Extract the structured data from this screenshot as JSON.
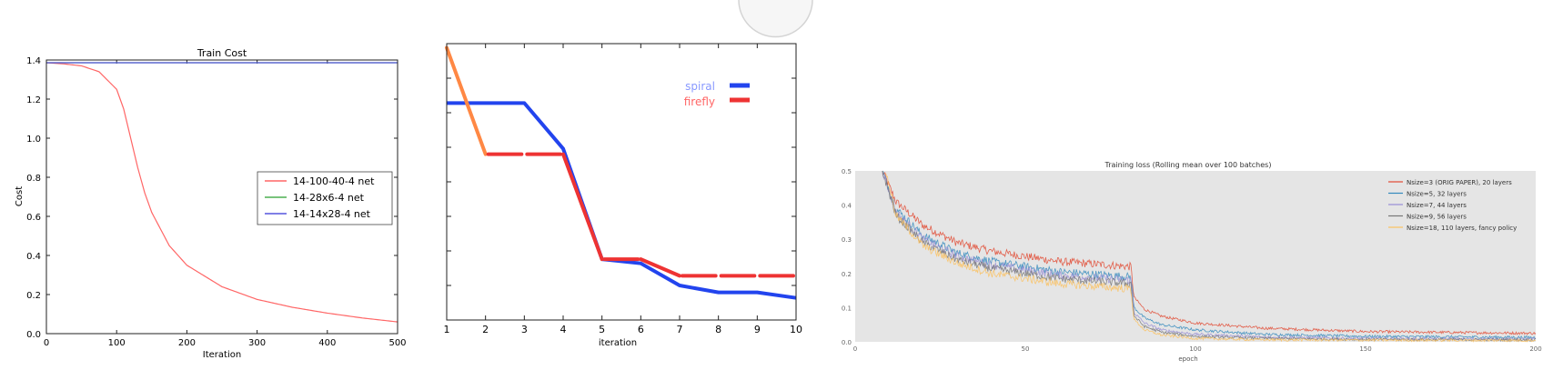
{
  "chart_data": [
    {
      "type": "line",
      "title": "Train Cost",
      "xlabel": "Iteration",
      "ylabel": "Cost",
      "xlim": [
        0,
        500
      ],
      "ylim": [
        0,
        1.4
      ],
      "x_ticks": [
        0,
        100,
        200,
        300,
        400,
        500
      ],
      "y_ticks": [
        0.0,
        0.2,
        0.4,
        0.6,
        0.8,
        1.0,
        1.2,
        1.4
      ],
      "x_tick_labels": [
        "0",
        "100",
        "200",
        "300",
        "400",
        "500"
      ],
      "y_tick_labels": [
        "0.0",
        "0.2",
        "0.4",
        "0.6",
        "0.8",
        "1.0",
        "1.2",
        "1.4"
      ],
      "legend_position": "center-right",
      "grid": false,
      "series": [
        {
          "name": "14-100-40-4 net",
          "color": "#ff6666",
          "x": [
            0,
            25,
            50,
            75,
            100,
            110,
            120,
            130,
            140,
            150,
            175,
            200,
            250,
            300,
            350,
            400,
            450,
            500
          ],
          "y": [
            1.386,
            1.38,
            1.37,
            1.34,
            1.25,
            1.15,
            1.0,
            0.85,
            0.72,
            0.62,
            0.45,
            0.35,
            0.24,
            0.175,
            0.135,
            0.105,
            0.08,
            0.06
          ]
        },
        {
          "name": "14-28x6-4 net",
          "color": "#4caf50",
          "x": [
            0,
            500
          ],
          "y": [
            1.386,
            1.386
          ]
        },
        {
          "name": "14-14x28-4 net",
          "color": "#5555dd",
          "x": [
            0,
            500
          ],
          "y": [
            1.386,
            1.386
          ]
        }
      ]
    },
    {
      "type": "line",
      "title": "",
      "xlabel": "iteration",
      "ylabel": "",
      "xlim": [
        1,
        10
      ],
      "ylim": [
        0,
        1
      ],
      "x_ticks": [
        1,
        2,
        3,
        4,
        5,
        6,
        7,
        8,
        9,
        10
      ],
      "x_tick_labels": [
        "1",
        "2",
        "3",
        "4",
        "5",
        "6",
        "7",
        "8",
        "9",
        "10"
      ],
      "legend_position": "top-right",
      "grid": false,
      "series": [
        {
          "name": "spiral",
          "color": "#2244ee",
          "x": [
            1,
            2,
            3,
            4,
            5,
            6,
            7,
            8,
            9,
            10
          ],
          "y": [
            0.785,
            0.785,
            0.785,
            0.62,
            0.22,
            0.205,
            0.125,
            0.1,
            0.1,
            0.08
          ]
        },
        {
          "name": "firefly",
          "color": "#ee3333",
          "x": [
            1,
            2,
            3,
            4,
            5,
            6,
            7,
            8,
            9,
            10
          ],
          "y": [
            0.985,
            0.6,
            0.6,
            0.6,
            0.22,
            0.22,
            0.16,
            0.16,
            0.16,
            0.16
          ]
        }
      ]
    },
    {
      "type": "line",
      "title": "Training loss (Rolling mean over 100 batches)",
      "xlabel": "epoch",
      "ylabel": "",
      "xlim": [
        0,
        200
      ],
      "ylim": [
        0,
        0.5
      ],
      "x_ticks": [
        0,
        50,
        100,
        150,
        200
      ],
      "y_ticks": [
        0.0,
        0.1,
        0.2,
        0.3,
        0.4,
        0.5
      ],
      "x_tick_labels": [
        "0",
        "50",
        "100",
        "150",
        "200"
      ],
      "y_tick_labels": [
        "0.0",
        "0.1",
        "0.2",
        "0.3",
        "0.4",
        "0.5"
      ],
      "legend_position": "top-right",
      "grid": false,
      "background": "#e5e5e5",
      "series": [
        {
          "name": "Nsize=3 (ORIG PAPER), 20 layers",
          "color": "#e24a33",
          "x": [
            8,
            12,
            20,
            30,
            40,
            60,
            81,
            82,
            85,
            90,
            100,
            120,
            150,
            200
          ],
          "y": [
            0.5,
            0.41,
            0.34,
            0.29,
            0.265,
            0.235,
            0.22,
            0.13,
            0.095,
            0.075,
            0.055,
            0.04,
            0.03,
            0.025
          ]
        },
        {
          "name": "Nsize=5, 32 layers",
          "color": "#348abd",
          "x": [
            8,
            12,
            20,
            30,
            40,
            60,
            81,
            82,
            85,
            90,
            100,
            120,
            150,
            200
          ],
          "y": [
            0.5,
            0.39,
            0.31,
            0.26,
            0.235,
            0.205,
            0.19,
            0.1,
            0.07,
            0.05,
            0.035,
            0.022,
            0.016,
            0.013
          ]
        },
        {
          "name": "Nsize=7, 44 layers",
          "color": "#988ed5",
          "x": [
            8,
            12,
            20,
            30,
            40,
            60,
            81,
            82,
            85,
            90,
            100,
            120,
            150,
            200
          ],
          "y": [
            0.5,
            0.38,
            0.3,
            0.25,
            0.225,
            0.195,
            0.18,
            0.085,
            0.055,
            0.035,
            0.022,
            0.014,
            0.01,
            0.008
          ]
        },
        {
          "name": "Nsize=9, 56 layers",
          "color": "#777777",
          "x": [
            8,
            12,
            20,
            30,
            40,
            60,
            81,
            82,
            85,
            90,
            100,
            120,
            150,
            200
          ],
          "y": [
            0.5,
            0.37,
            0.29,
            0.24,
            0.215,
            0.185,
            0.17,
            0.075,
            0.045,
            0.028,
            0.016,
            0.01,
            0.007,
            0.006
          ]
        },
        {
          "name": "Nsize=18, 110 layers, fancy policy",
          "color": "#fbc15e",
          "x": [
            9,
            12,
            20,
            30,
            40,
            60,
            81,
            82,
            85,
            90,
            100,
            120,
            150,
            200
          ],
          "y": [
            0.5,
            0.37,
            0.28,
            0.23,
            0.2,
            0.17,
            0.155,
            0.065,
            0.035,
            0.02,
            0.01,
            0.006,
            0.005,
            0.004
          ]
        }
      ]
    }
  ]
}
